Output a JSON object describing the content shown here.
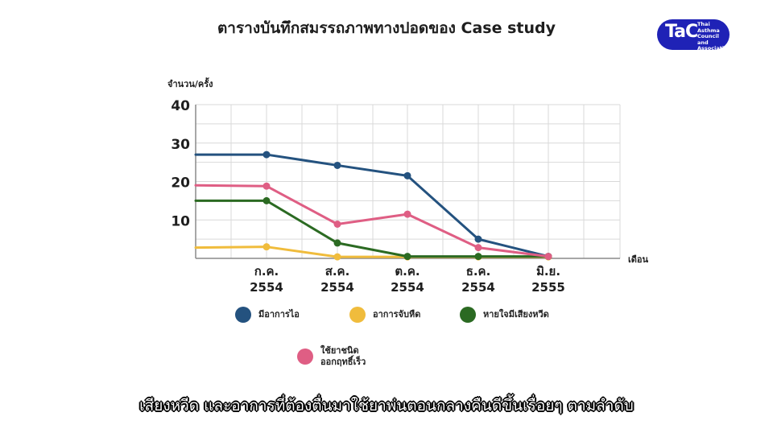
{
  "title": "ตารางบันทึกสมรรถภาพทางปอดของ Case study",
  "logo": {
    "mark": "TaC",
    "text": "Thai\nAsthma\nCouncil\nand Association"
  },
  "subtitle": "เสียงหวีด และอาการที่ต้องตื่นมาใช้ยาพ่นตอนกลางคืนดีขึ้นเรื่อยๆ ตามลำดับ",
  "chart_data": {
    "type": "line",
    "ylabel": "จำนวน/ครั้ง",
    "xlabel": "เดือน",
    "ylim": [
      0,
      40
    ],
    "y_ticks": [
      10,
      20,
      30,
      40
    ],
    "grid": true,
    "categories": [
      "",
      "ก.ค.\n2554",
      "ส.ค.\n2554",
      "ต.ค.\n2554",
      "ธ.ค.\n2554",
      "มิ.ย.\n2555"
    ],
    "series": [
      {
        "name": "มีอาการไอ",
        "color": "#24527f",
        "values": [
          27,
          27,
          24.2,
          21.5,
          5,
          0.5
        ]
      },
      {
        "name": "อาการจับหืด",
        "color": "#f0bc3c",
        "values": [
          2.8,
          3,
          0.4,
          0.4,
          0.4,
          0.4
        ]
      },
      {
        "name": "หายใจมีเสียงหวีด",
        "color": "#2b6a22",
        "values": [
          15,
          15,
          4,
          0.5,
          0.5,
          0.5
        ]
      },
      {
        "name": "ใช้ยาชนิด\nออกฤทธิ์เร็ว",
        "color": "#df5e84",
        "values": [
          19,
          18.8,
          8.9,
          11.5,
          2.8,
          0.5
        ]
      }
    ],
    "legend_order": [
      0,
      1,
      2,
      3
    ]
  }
}
